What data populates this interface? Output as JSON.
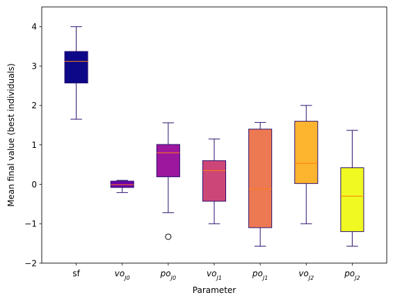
{
  "chart_data": {
    "type": "box",
    "title": "",
    "xlabel": "Parameter",
    "ylabel": "Mean final value (best individuals)",
    "ylim": [
      -2,
      4.5
    ],
    "yticks": [
      -2,
      -1,
      0,
      1,
      2,
      3,
      4
    ],
    "ytick_labels": [
      "−2",
      "−1",
      "0",
      "1",
      "2",
      "3",
      "4"
    ],
    "grid": false,
    "legend": "none",
    "median_color": "#ff7f0e",
    "edge_color": "#2a0f6e",
    "categories": [
      {
        "main": "sf",
        "sub": ""
      },
      {
        "main": "vo",
        "sub": "J0"
      },
      {
        "main": "po",
        "sub": "J0"
      },
      {
        "main": "vo",
        "sub": "J1"
      },
      {
        "main": "po",
        "sub": "J1"
      },
      {
        "main": "vo",
        "sub": "J2"
      },
      {
        "main": "po",
        "sub": "J2"
      }
    ],
    "boxes": [
      {
        "whislo": 1.65,
        "q1": 2.57,
        "med": 3.12,
        "q3": 3.37,
        "whishi": 4.0,
        "fliers": [],
        "color": "#0d0887"
      },
      {
        "whislo": -0.21,
        "q1": -0.08,
        "med": -0.01,
        "q3": 0.08,
        "whishi": 0.1,
        "fliers": [],
        "color": "#6a00a8"
      },
      {
        "whislo": -0.72,
        "q1": 0.19,
        "med": 0.8,
        "q3": 1.01,
        "whishi": 1.56,
        "fliers": [
          -1.33
        ],
        "color": "#9c179e"
      },
      {
        "whislo": -1.0,
        "q1": -0.43,
        "med": 0.35,
        "q3": 0.6,
        "whishi": 1.15,
        "fliers": [],
        "color": "#cc4778"
      },
      {
        "whislo": -1.57,
        "q1": -1.1,
        "med": -0.12,
        "q3": 1.4,
        "whishi": 1.57,
        "fliers": [],
        "color": "#ed7953"
      },
      {
        "whislo": -1.0,
        "q1": 0.02,
        "med": 0.53,
        "q3": 1.6,
        "whishi": 2.0,
        "fliers": [],
        "color": "#fdb42f"
      },
      {
        "whislo": -1.57,
        "q1": -1.2,
        "med": -0.3,
        "q3": 0.42,
        "whishi": 1.37,
        "fliers": [],
        "color": "#f0f921"
      }
    ]
  }
}
